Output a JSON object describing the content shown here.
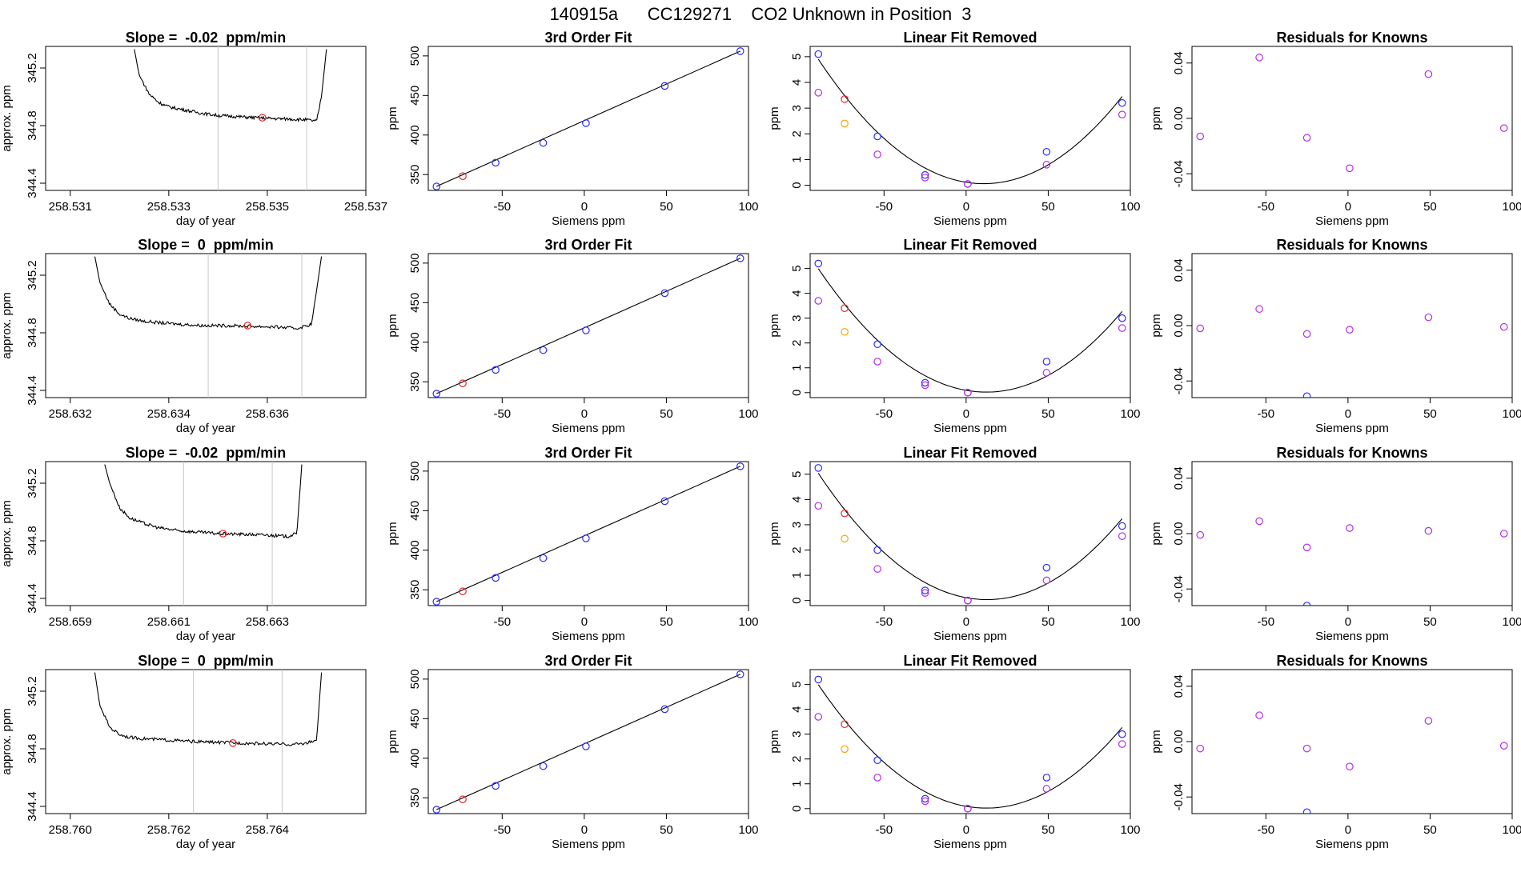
{
  "figure_title": "140915a      CC129271    CO2 Unknown in Position  3",
  "colors": {
    "trace": "#000000",
    "marker_red": "#e8262a",
    "marker_blue": "#2b2bff",
    "marker_orange": "#ffa500",
    "marker_purple": "#b22ee8",
    "vline": "#c8c8c8"
  },
  "chart_data": [
    {
      "type": "line",
      "row": 1,
      "panel": "trace",
      "title": "Slope =  -0.02  ppm/min",
      "xlabel": "day of year",
      "ylabel": "approx. ppm",
      "xlim": [
        258.5305,
        258.537
      ],
      "ylim": [
        344.35,
        345.35
      ],
      "xticks": [
        258.531,
        258.533,
        258.535,
        258.537
      ],
      "xtick_labels": [
        "258.531",
        "258.533",
        "258.535",
        "258.537"
      ],
      "yticks": [
        344.4,
        344.8,
        345.2
      ],
      "ytick_labels": [
        "344.4",
        "344.8",
        "345.2"
      ],
      "vlines": [
        258.534,
        258.5358
      ],
      "trace": {
        "x": [
          258.5323,
          258.5324,
          258.5326,
          258.5328,
          258.533,
          258.5333,
          258.5336,
          258.534,
          258.5345,
          258.535,
          258.5355,
          258.5358,
          258.536,
          258.5361,
          258.5362
        ],
        "y": [
          345.33,
          345.15,
          345.02,
          344.96,
          344.93,
          344.91,
          344.89,
          344.87,
          344.86,
          344.85,
          344.845,
          344.84,
          344.83,
          345.0,
          345.33
        ]
      },
      "marker": {
        "x": 258.5349,
        "y": 344.855
      }
    },
    {
      "type": "scatter",
      "row": 1,
      "panel": "fit",
      "title": "3rd Order Fit",
      "xlabel": "Siemens ppm",
      "ylabel": "ppm",
      "xlim": [
        -95,
        100
      ],
      "ylim": [
        330,
        512
      ],
      "xticks": [
        -50,
        0,
        50,
        100
      ],
      "xtick_labels": [
        "-50",
        "0",
        "50",
        "100"
      ],
      "yticks": [
        350,
        400,
        450,
        500
      ],
      "ytick_labels": [
        "350",
        "400",
        "450",
        "500"
      ],
      "fit_line": {
        "x": [
          -90,
          95
        ],
        "y": [
          335,
          506
        ]
      },
      "blue": {
        "x": [
          -90,
          -54,
          -25,
          1,
          49,
          95
        ],
        "y": [
          335,
          365,
          390,
          415,
          462,
          506
        ]
      },
      "red": {
        "x": [
          -74
        ],
        "y": [
          348
        ]
      }
    },
    {
      "type": "scatter",
      "row": 1,
      "panel": "linear_removed",
      "title": "Linear Fit Removed",
      "xlabel": "Siemens ppm",
      "ylabel": "ppm",
      "xlim": [
        -95,
        100
      ],
      "ylim": [
        -0.2,
        5.4
      ],
      "xticks": [
        -50,
        0,
        50,
        100
      ],
      "xtick_labels": [
        "-50",
        "0",
        "50",
        "100"
      ],
      "yticks": [
        0,
        1,
        2,
        3,
        4,
        5
      ],
      "ytick_labels": [
        "0",
        "1",
        "2",
        "3",
        "4",
        "5"
      ],
      "curve": {
        "a": 5.1,
        "b": 0.0063,
        "c": 0.0006
      },
      "blue": {
        "x": [
          -90,
          -54,
          -25,
          1,
          49,
          95
        ],
        "y": [
          5.1,
          1.9,
          0.4,
          0.05,
          1.3,
          3.2
        ]
      },
      "purple": {
        "x": [
          -90,
          -54,
          -25,
          1,
          49,
          95
        ],
        "y": [
          3.6,
          1.2,
          0.3,
          0.05,
          0.8,
          2.75
        ]
      },
      "red": {
        "x": [
          -74
        ],
        "y": [
          3.35
        ]
      },
      "orange": {
        "x": [
          -74
        ],
        "y": [
          2.4
        ]
      }
    },
    {
      "type": "scatter",
      "row": 1,
      "panel": "residuals",
      "title": "Residuals for Knowns",
      "xlabel": "Siemens ppm",
      "ylabel": "ppm",
      "xlim": [
        -95,
        100
      ],
      "ylim": [
        -0.052,
        0.052
      ],
      "xticks": [
        -50,
        0,
        50,
        100
      ],
      "xtick_labels": [
        "-50",
        "0",
        "50",
        "100"
      ],
      "yticks": [
        -0.04,
        0.0,
        0.04
      ],
      "ytick_labels": [
        "-0.04",
        "0.00",
        "0.04"
      ],
      "purple": {
        "x": [
          -90,
          -54,
          -25,
          1,
          49,
          95
        ],
        "y": [
          -0.013,
          0.044,
          -0.014,
          -0.036,
          0.032,
          -0.007
        ]
      },
      "blue": {
        "x": [],
        "y": []
      }
    },
    {
      "type": "line",
      "row": 2,
      "panel": "trace",
      "title": "Slope =  0  ppm/min",
      "xlabel": "day of year",
      "ylabel": "approx. ppm",
      "xlim": [
        258.6315,
        258.638
      ],
      "ylim": [
        344.35,
        345.35
      ],
      "xticks": [
        258.632,
        258.634,
        258.636
      ],
      "xtick_labels": [
        "258.632",
        "258.634",
        "258.636"
      ],
      "yticks": [
        344.4,
        344.8,
        345.2
      ],
      "ytick_labels": [
        "344.4",
        "344.8",
        "345.2"
      ],
      "vlines": [
        258.6348,
        258.6367
      ],
      "trace": {
        "x": [
          258.6325,
          258.6326,
          258.6328,
          258.633,
          258.6332,
          258.6335,
          258.6338,
          258.6342,
          258.6347,
          258.6352,
          258.6357,
          258.6362,
          258.6366,
          258.6369,
          258.6371
        ],
        "y": [
          345.33,
          345.15,
          345.0,
          344.93,
          344.9,
          344.88,
          344.87,
          344.86,
          344.85,
          344.85,
          344.845,
          344.84,
          344.83,
          344.86,
          345.33
        ]
      },
      "marker": {
        "x": 258.6356,
        "y": 344.85
      }
    },
    {
      "type": "scatter",
      "row": 2,
      "panel": "fit",
      "title": "3rd Order Fit",
      "xlabel": "Siemens ppm",
      "ylabel": "ppm",
      "xlim": [
        -95,
        100
      ],
      "ylim": [
        330,
        512
      ],
      "xticks": [
        -50,
        0,
        50,
        100
      ],
      "xtick_labels": [
        "-50",
        "0",
        "50",
        "100"
      ],
      "yticks": [
        350,
        400,
        450,
        500
      ],
      "ytick_labels": [
        "350",
        "400",
        "450",
        "500"
      ],
      "fit_line": {
        "x": [
          -90,
          95
        ],
        "y": [
          335,
          506
        ]
      },
      "blue": {
        "x": [
          -90,
          -54,
          -25,
          1,
          49,
          95
        ],
        "y": [
          335,
          365,
          390,
          415,
          462,
          506
        ]
      },
      "red": {
        "x": [
          -74
        ],
        "y": [
          348
        ]
      }
    },
    {
      "type": "scatter",
      "row": 2,
      "panel": "linear_removed",
      "title": "Linear Fit Removed",
      "xlabel": "Siemens ppm",
      "ylabel": "ppm",
      "xlim": [
        -95,
        100
      ],
      "ylim": [
        -0.2,
        5.6
      ],
      "xticks": [
        -50,
        0,
        50,
        100
      ],
      "xtick_labels": [
        "-50",
        "0",
        "50",
        "100"
      ],
      "yticks": [
        0,
        1,
        2,
        3,
        4,
        5
      ],
      "ytick_labels": [
        "0",
        "1",
        "2",
        "3",
        "4",
        "5"
      ],
      "curve": {
        "a": 5.2,
        "b": 0.0066,
        "c": 0.0005
      },
      "blue": {
        "x": [
          -90,
          -54,
          -25,
          1,
          49,
          95
        ],
        "y": [
          5.2,
          1.95,
          0.4,
          0.0,
          1.25,
          3.0
        ]
      },
      "purple": {
        "x": [
          -90,
          -54,
          -25,
          1,
          49,
          95
        ],
        "y": [
          3.7,
          1.25,
          0.3,
          0.0,
          0.8,
          2.6
        ]
      },
      "red": {
        "x": [
          -74
        ],
        "y": [
          3.4
        ]
      },
      "orange": {
        "x": [
          -74
        ],
        "y": [
          2.45
        ]
      }
    },
    {
      "type": "scatter",
      "row": 2,
      "panel": "residuals",
      "title": "Residuals for Knowns",
      "xlabel": "Siemens ppm",
      "ylabel": "ppm",
      "xlim": [
        -95,
        100
      ],
      "ylim": [
        -0.052,
        0.052
      ],
      "xticks": [
        -50,
        0,
        50,
        100
      ],
      "xtick_labels": [
        "-50",
        "0",
        "50",
        "100"
      ],
      "yticks": [
        -0.04,
        0.0,
        0.04
      ],
      "ytick_labels": [
        "-0.04",
        "0.00",
        "0.04"
      ],
      "purple": {
        "x": [
          -90,
          -54,
          -25,
          1,
          49,
          95
        ],
        "y": [
          -0.002,
          0.012,
          -0.006,
          -0.003,
          0.006,
          -0.001
        ]
      },
      "blue": {
        "x": [
          -25
        ],
        "y": [
          -0.051
        ]
      }
    },
    {
      "type": "line",
      "row": 3,
      "panel": "trace",
      "title": "Slope =  -0.02  ppm/min",
      "xlabel": "day of year",
      "ylabel": "approx. ppm",
      "xlim": [
        258.6585,
        258.665
      ],
      "ylim": [
        344.35,
        345.35
      ],
      "xticks": [
        258.659,
        258.661,
        258.663
      ],
      "xtick_labels": [
        "258.659",
        "258.661",
        "258.663"
      ],
      "yticks": [
        344.4,
        344.8,
        345.2
      ],
      "ytick_labels": [
        "344.4",
        "344.8",
        "345.2"
      ],
      "vlines": [
        258.6613,
        258.6631
      ],
      "trace": {
        "x": [
          258.6597,
          258.6598,
          258.66,
          258.6602,
          258.6605,
          258.6608,
          258.6612,
          258.6616,
          258.662,
          258.6625,
          258.663,
          258.6634,
          258.6636,
          258.6637
        ],
        "y": [
          345.33,
          345.2,
          345.03,
          344.96,
          344.92,
          344.89,
          344.87,
          344.86,
          344.85,
          344.845,
          344.84,
          344.83,
          344.85,
          345.33
        ]
      },
      "marker": {
        "x": 258.6621,
        "y": 344.85
      }
    },
    {
      "type": "scatter",
      "row": 3,
      "panel": "fit",
      "title": "3rd Order Fit",
      "xlabel": "Siemens ppm",
      "ylabel": "ppm",
      "xlim": [
        -95,
        100
      ],
      "ylim": [
        330,
        512
      ],
      "xticks": [
        -50,
        0,
        50,
        100
      ],
      "xtick_labels": [
        "-50",
        "0",
        "50",
        "100"
      ],
      "yticks": [
        350,
        400,
        450,
        500
      ],
      "ytick_labels": [
        "350",
        "400",
        "450",
        "500"
      ],
      "fit_line": {
        "x": [
          -90,
          95
        ],
        "y": [
          335,
          506
        ]
      },
      "blue": {
        "x": [
          -90,
          -54,
          -25,
          1,
          49,
          95
        ],
        "y": [
          335,
          365,
          390,
          415,
          462,
          506
        ]
      },
      "red": {
        "x": [
          -74
        ],
        "y": [
          348
        ]
      }
    },
    {
      "type": "scatter",
      "row": 3,
      "panel": "linear_removed",
      "title": "Linear Fit Removed",
      "xlabel": "Siemens ppm",
      "ylabel": "ppm",
      "xlim": [
        -95,
        100
      ],
      "ylim": [
        -0.2,
        5.5
      ],
      "xticks": [
        -50,
        0,
        50,
        100
      ],
      "xtick_labels": [
        "-50",
        "0",
        "50",
        "100"
      ],
      "yticks": [
        0,
        1,
        2,
        3,
        4,
        5
      ],
      "ytick_labels": [
        "0",
        "1",
        "2",
        "3",
        "4",
        "5"
      ],
      "curve": {
        "a": 5.2,
        "b": 0.0066,
        "c": 0.0005
      },
      "blue": {
        "x": [
          -90,
          -54,
          -25,
          1,
          49,
          95
        ],
        "y": [
          5.25,
          2.0,
          0.4,
          0.0,
          1.3,
          2.95
        ]
      },
      "purple": {
        "x": [
          -90,
          -54,
          -25,
          1,
          49,
          95
        ],
        "y": [
          3.75,
          1.25,
          0.3,
          0.0,
          0.8,
          2.55
        ]
      },
      "red": {
        "x": [
          -74
        ],
        "y": [
          3.45
        ]
      },
      "orange": {
        "x": [
          -74
        ],
        "y": [
          2.45
        ]
      }
    },
    {
      "type": "scatter",
      "row": 3,
      "panel": "residuals",
      "title": "Residuals for Knowns",
      "xlabel": "Siemens ppm",
      "ylabel": "ppm",
      "xlim": [
        -95,
        100
      ],
      "ylim": [
        -0.052,
        0.052
      ],
      "xticks": [
        -50,
        0,
        50,
        100
      ],
      "xtick_labels": [
        "-50",
        "0",
        "50",
        "100"
      ],
      "yticks": [
        -0.04,
        0.0,
        0.04
      ],
      "ytick_labels": [
        "-0.04",
        "0.00",
        "0.04"
      ],
      "purple": {
        "x": [
          -90,
          -54,
          -25,
          1,
          49,
          95
        ],
        "y": [
          -0.001,
          0.009,
          -0.01,
          0.004,
          0.002,
          0.0
        ]
      },
      "blue": {
        "x": [
          -25
        ],
        "y": [
          -0.052
        ]
      }
    },
    {
      "type": "line",
      "row": 4,
      "panel": "trace",
      "title": "Slope =  0  ppm/min",
      "xlabel": "day of year",
      "ylabel": "approx. ppm",
      "xlim": [
        258.7595,
        258.766
      ],
      "ylim": [
        344.35,
        345.35
      ],
      "xticks": [
        258.76,
        258.762,
        258.764
      ],
      "xtick_labels": [
        "258.760",
        "258.762",
        "258.764"
      ],
      "yticks": [
        344.4,
        344.8,
        345.2
      ],
      "ytick_labels": [
        "344.4",
        "344.8",
        "345.2"
      ],
      "vlines": [
        258.7625,
        258.7643
      ],
      "trace": {
        "x": [
          258.7605,
          258.7606,
          258.7608,
          258.761,
          258.7612,
          258.7615,
          258.762,
          258.7625,
          258.763,
          258.7635,
          258.764,
          258.7645,
          258.7648,
          258.765,
          258.7651
        ],
        "y": [
          345.33,
          345.1,
          344.95,
          344.9,
          344.88,
          344.87,
          344.86,
          344.85,
          344.845,
          344.84,
          344.835,
          344.83,
          344.84,
          344.86,
          345.33
        ]
      },
      "marker": {
        "x": 258.7633,
        "y": 344.84
      }
    },
    {
      "type": "scatter",
      "row": 4,
      "panel": "fit",
      "title": "3rd Order Fit",
      "xlabel": "Siemens ppm",
      "ylabel": "ppm",
      "xlim": [
        -95,
        100
      ],
      "ylim": [
        330,
        512
      ],
      "xticks": [
        -50,
        0,
        50,
        100
      ],
      "xtick_labels": [
        "-50",
        "0",
        "50",
        "100"
      ],
      "yticks": [
        350,
        400,
        450,
        500
      ],
      "ytick_labels": [
        "350",
        "400",
        "450",
        "500"
      ],
      "fit_line": {
        "x": [
          -90,
          95
        ],
        "y": [
          335,
          506
        ]
      },
      "blue": {
        "x": [
          -90,
          -54,
          -25,
          1,
          49,
          95
        ],
        "y": [
          335,
          365,
          390,
          415,
          462,
          506
        ]
      },
      "red": {
        "x": [
          -74
        ],
        "y": [
          348
        ]
      }
    },
    {
      "type": "scatter",
      "row": 4,
      "panel": "linear_removed",
      "title": "Linear Fit Removed",
      "xlabel": "Siemens ppm",
      "ylabel": "ppm",
      "xlim": [
        -95,
        100
      ],
      "ylim": [
        -0.2,
        5.6
      ],
      "xticks": [
        -50,
        0,
        50,
        100
      ],
      "xtick_labels": [
        "-50",
        "0",
        "50",
        "100"
      ],
      "yticks": [
        0,
        1,
        2,
        3,
        4,
        5
      ],
      "ytick_labels": [
        "0",
        "1",
        "2",
        "3",
        "4",
        "5"
      ],
      "curve": {
        "a": 5.2,
        "b": 0.0066,
        "c": 0.0005
      },
      "blue": {
        "x": [
          -90,
          -54,
          -25,
          1,
          49,
          95
        ],
        "y": [
          5.2,
          1.95,
          0.4,
          0.0,
          1.25,
          3.0
        ]
      },
      "purple": {
        "x": [
          -90,
          -54,
          -25,
          1,
          49,
          95
        ],
        "y": [
          3.7,
          1.25,
          0.3,
          0.0,
          0.8,
          2.6
        ]
      },
      "red": {
        "x": [
          -74
        ],
        "y": [
          3.4
        ]
      },
      "orange": {
        "x": [
          -74
        ],
        "y": [
          2.4
        ]
      }
    },
    {
      "type": "scatter",
      "row": 4,
      "panel": "residuals",
      "title": "Residuals for Knowns",
      "xlabel": "Siemens ppm",
      "ylabel": "ppm",
      "xlim": [
        -95,
        100
      ],
      "ylim": [
        -0.052,
        0.052
      ],
      "xticks": [
        -50,
        0,
        50,
        100
      ],
      "xtick_labels": [
        "-50",
        "0",
        "50",
        "100"
      ],
      "yticks": [
        -0.04,
        0.0,
        0.04
      ],
      "ytick_labels": [
        "-0.04",
        "0.00",
        "0.04"
      ],
      "purple": {
        "x": [
          -90,
          -54,
          -25,
          1,
          49,
          95
        ],
        "y": [
          -0.005,
          0.019,
          -0.005,
          -0.018,
          0.015,
          -0.003
        ]
      },
      "blue": {
        "x": [
          -25
        ],
        "y": [
          -0.051
        ]
      }
    }
  ]
}
